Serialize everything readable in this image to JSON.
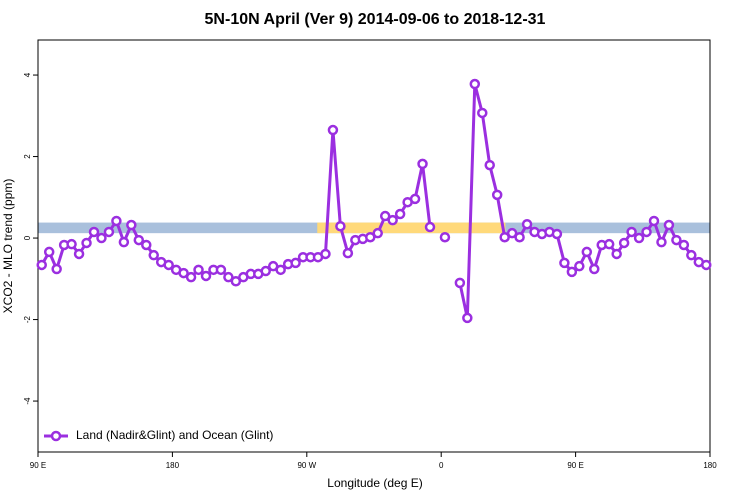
{
  "chart_data": {
    "type": "line",
    "title": "5N-10N April (Ver 9)   2014-09-06 to 2018-12-31",
    "x_label": "Longitude (deg E)",
    "y_label": "XCO2 - MLO trend (ppm)",
    "xlim": [
      90,
      540
    ],
    "ylim": [
      -5.25,
      4.86
    ],
    "xticks": [
      {
        "value": 90,
        "label": "90 E"
      },
      {
        "value": 180,
        "label": "180"
      },
      {
        "value": 270,
        "label": "90 W"
      },
      {
        "value": 360,
        "label": "0"
      },
      {
        "value": 450,
        "label": "90 E"
      },
      {
        "value": 540,
        "label": "180"
      }
    ],
    "yticks": [
      4,
      2,
      0,
      -2,
      -4
    ],
    "legend_position": "lower left",
    "band": {
      "ylim": [
        0.12,
        0.38
      ],
      "color": "#a9c0dc",
      "land_color": "#ffd97a",
      "land_xlim": [
        277,
        403
      ]
    },
    "x": [
      92.5,
      97.5,
      102.5,
      107.5,
      112.5,
      117.5,
      122.5,
      127.5,
      132.5,
      137.5,
      142.5,
      147.5,
      152.5,
      157.5,
      162.5,
      167.5,
      172.5,
      177.5,
      182.5,
      187.5,
      192.5,
      197.5,
      202.5,
      207.5,
      212.5,
      217.5,
      222.5,
      227.5,
      232.5,
      237.5,
      242.5,
      247.5,
      252.5,
      257.5,
      262.5,
      267.5,
      272.5,
      277.5,
      282.5,
      287.5,
      292.5,
      297.5,
      302.5,
      307.5,
      312.5,
      317.5,
      322.5,
      327.5,
      332.5,
      337.5,
      342.5,
      347.5,
      352.5,
      357.5,
      362.5,
      367.5,
      372.5,
      377.5,
      382.5,
      387.5,
      392.5,
      397.5,
      402.5,
      407.5,
      412.5,
      417.5,
      422.5,
      427.5,
      432.5,
      437.5,
      442.5,
      447.5,
      452.5,
      457.5,
      462.5,
      467.5,
      472.5,
      477.5,
      482.5,
      487.5,
      492.5,
      497.5,
      502.5,
      507.5,
      512.5,
      517.5,
      522.5,
      527.5,
      532.5,
      537.5
    ],
    "series": [
      {
        "name": "Land (Nadir&Glint) and Ocean (Glint)",
        "color": "#9b2fe0",
        "values": [
          -0.66,
          -0.34,
          -0.76,
          -0.17,
          -0.15,
          -0.39,
          -0.12,
          0.15,
          0.0,
          0.15,
          0.42,
          -0.1,
          0.32,
          -0.05,
          -0.17,
          -0.42,
          -0.59,
          -0.66,
          -0.78,
          -0.86,
          -0.96,
          -0.78,
          -0.93,
          -0.78,
          -0.78,
          -0.96,
          -1.06,
          -0.96,
          -0.88,
          -0.88,
          -0.81,
          -0.69,
          -0.78,
          -0.64,
          -0.61,
          -0.47,
          -0.47,
          -0.47,
          -0.39,
          2.65,
          0.29,
          -0.37,
          -0.05,
          -0.02,
          0.02,
          0.12,
          0.54,
          0.44,
          0.59,
          0.88,
          0.96,
          1.82,
          0.27,
          null,
          0.02,
          null,
          -1.1,
          -1.96,
          3.78,
          3.07,
          1.79,
          1.06,
          0.02,
          0.12,
          0.02,
          0.34,
          0.15,
          0.1,
          0.15,
          0.1,
          -0.61,
          -0.83,
          -0.69,
          -0.34,
          -0.76,
          -0.17,
          -0.15,
          -0.39,
          -0.12,
          0.15,
          0.0,
          0.15,
          0.42,
          -0.1,
          0.32,
          -0.05,
          -0.17,
          -0.42,
          -0.59,
          -0.66
        ]
      }
    ]
  }
}
